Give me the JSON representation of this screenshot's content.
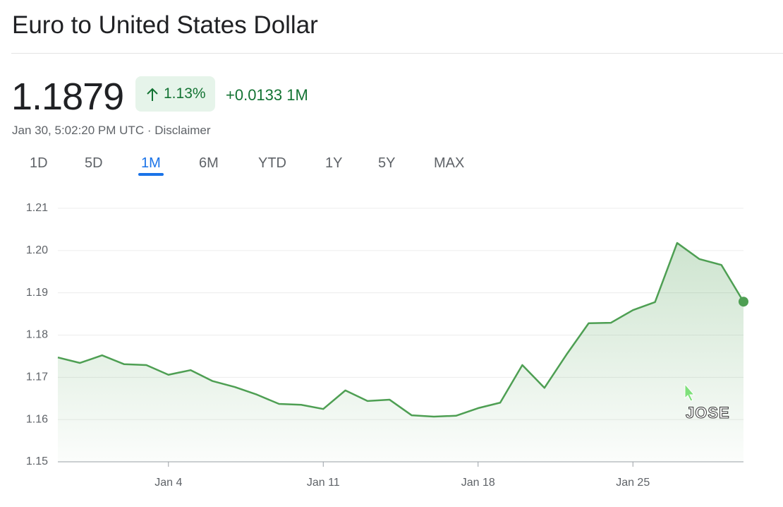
{
  "header": {
    "title": "Euro to United States Dollar",
    "price": "1.1879",
    "change_percent": "1.13%",
    "change": "+0.0133 1M",
    "subtitle": "Jan 30, 5:02:20 PM UTC · Disclaimer"
  },
  "tabs": [
    "1D",
    "5D",
    "1M",
    "6M",
    "YTD",
    "1Y",
    "5Y",
    "MAX"
  ],
  "selected_tab": "1M",
  "cursor_label": "JOSE",
  "chart_data": {
    "type": "area",
    "color": "#4e9f53",
    "grid": true,
    "categories": [
      null,
      null,
      null,
      null,
      null,
      "Jan 4",
      null,
      null,
      null,
      null,
      null,
      null,
      "Jan 11",
      null,
      null,
      null,
      null,
      null,
      null,
      "Jan 18",
      null,
      null,
      null,
      null,
      null,
      null,
      "Jan 25",
      null,
      null,
      null,
      null,
      null
    ],
    "values": [
      1.1747,
      1.1734,
      1.1752,
      1.1731,
      1.1729,
      1.1706,
      1.1717,
      1.1691,
      1.1677,
      1.1659,
      1.1637,
      1.1635,
      1.1625,
      1.1669,
      1.1644,
      1.1647,
      1.161,
      1.1607,
      1.1609,
      1.1627,
      1.164,
      1.1729,
      1.1675,
      1.1754,
      1.1828,
      1.1829,
      1.1859,
      1.1878,
      1.2018,
      1.198,
      1.1966,
      1.1879
    ],
    "ylim": [
      1.15,
      1.21
    ],
    "yticks": [
      1.15,
      1.16,
      1.17,
      1.18,
      1.19,
      {
        "value": 1.2,
        "label": "1.20"
      },
      1.21
    ]
  }
}
